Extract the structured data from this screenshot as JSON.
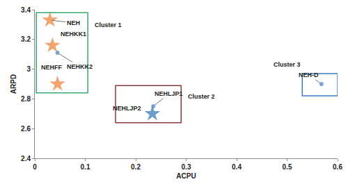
{
  "chart_data": {
    "type": "scatter",
    "x_label": "ACPU",
    "y_label": "ARPD",
    "xlim": [
      0,
      0.6
    ],
    "xticks": [
      0,
      0.1,
      0.2,
      0.3,
      0.4,
      0.5,
      0.6
    ],
    "ylim": [
      2.4,
      3.4
    ],
    "yticks": [
      2.4,
      2.6,
      2.8,
      3,
      3.2,
      3.4
    ],
    "grid": false,
    "points": [
      {
        "name": "NEH",
        "x": 0.03,
        "y": 3.33,
        "marker": "star",
        "color": "#ed7d31"
      },
      {
        "name": "NEHKK1",
        "x": 0.035,
        "y": 3.16,
        "marker": "star",
        "color": "#ed7d31"
      },
      {
        "name": "NEHKK2",
        "x": 0.045,
        "y": 3.11,
        "marker": "circle",
        "color": "#4a7ebb"
      },
      {
        "name": "NEHFF",
        "x": 0.045,
        "y": 2.9,
        "marker": "star",
        "color": "#ed7d31"
      },
      {
        "name": "NEHLJP1",
        "x": 0.235,
        "y": 2.75,
        "marker": "circle",
        "color": "#4a7ebb"
      },
      {
        "name": "NEHLJP2",
        "x": 0.233,
        "y": 2.7,
        "marker": "star",
        "color": "#2e75b6"
      },
      {
        "name": "NEH-D",
        "x": 0.568,
        "y": 2.9,
        "marker": "circle",
        "color": "#4a7ebb"
      }
    ],
    "clusters": [
      {
        "name": "Cluster 1",
        "color": "#3aa76d",
        "x": [
          0.003,
          0.105
        ],
        "y": [
          2.84,
          3.38
        ]
      },
      {
        "name": "Cluster 2",
        "color": "#8b3a3a",
        "x": [
          0.16,
          0.29
        ],
        "y": [
          2.64,
          2.89
        ]
      },
      {
        "name": "Cluster 3",
        "color": "#3a7fc1",
        "x": [
          0.53,
          0.6
        ],
        "y": [
          2.82,
          2.97
        ]
      }
    ]
  }
}
